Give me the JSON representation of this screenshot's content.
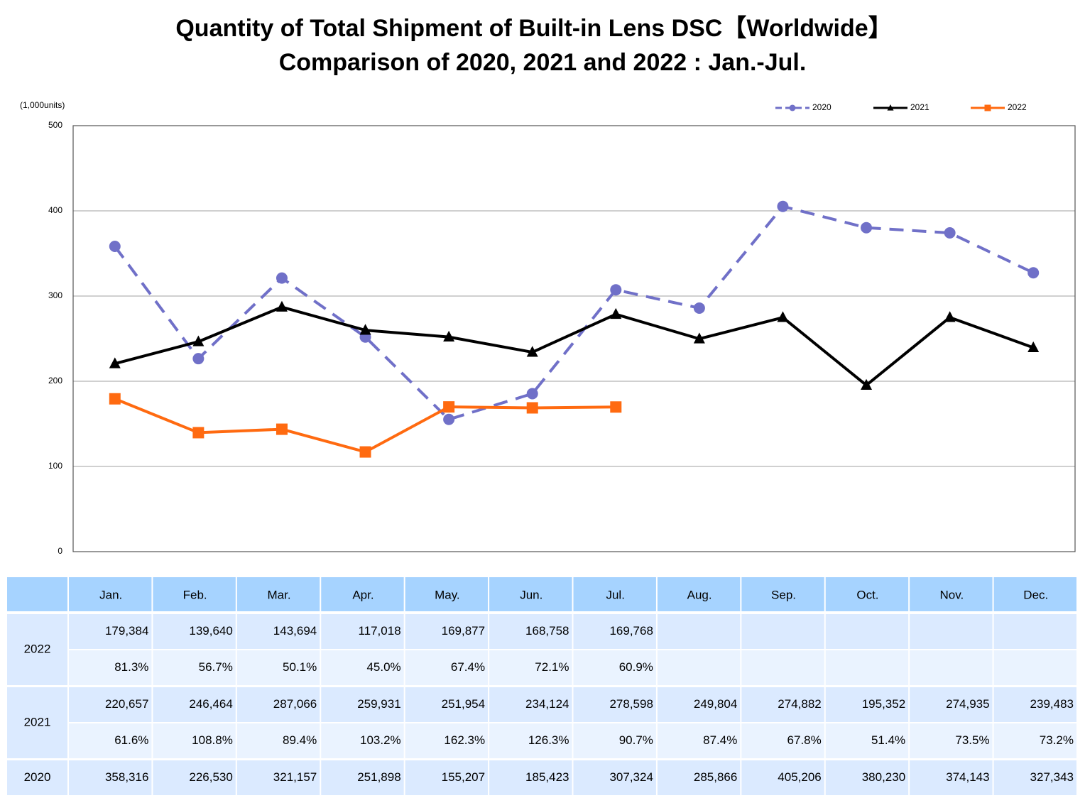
{
  "chart_data": {
    "type": "line",
    "title": [
      "Quantity of Total Shipment of Built-in Lens DSC【Worldwide】",
      "Comparison of 2020, 2021 and 2022 : Jan.-Jul."
    ],
    "ylabel": "(1,000units)",
    "categories": [
      "Jan.",
      "Feb.",
      "Mar.",
      "Apr.",
      "May.",
      "Jun.",
      "Jul.",
      "Aug.",
      "Sep.",
      "Oct.",
      "Nov.",
      "Dec."
    ],
    "series": [
      {
        "name": "2020",
        "color": "#7070c8",
        "dash": true,
        "marker": "circle",
        "values": [
          358.316,
          226.53,
          321.157,
          251.898,
          155.207,
          185.423,
          307.324,
          285.866,
          405.206,
          380.23,
          374.143,
          327.343
        ]
      },
      {
        "name": "2021",
        "color": "#000000",
        "dash": false,
        "marker": "triangle",
        "values": [
          220.657,
          246.464,
          287.066,
          259.931,
          251.954,
          234.124,
          278.598,
          249.804,
          274.882,
          195.352,
          274.935,
          239.483
        ]
      },
      {
        "name": "2022",
        "color": "#ff6a10",
        "dash": false,
        "marker": "square",
        "values": [
          179.384,
          139.64,
          143.694,
          117.018,
          169.877,
          168.758,
          169.768,
          null,
          null,
          null,
          null,
          null
        ]
      }
    ],
    "ylim": [
      0,
      500
    ],
    "yticks": [
      0,
      100,
      200,
      300,
      400,
      500
    ],
    "grid": true,
    "legend": "top-right"
  },
  "table": {
    "quantities": [
      [
        "358,316",
        "226,530",
        "321,157",
        "251,898",
        "155,207",
        "185,423",
        "307,324",
        "285,866",
        "405,206",
        "380,230",
        "374,143",
        "327,343"
      ],
      [
        "220,657",
        "246,464",
        "287,066",
        "259,931",
        "251,954",
        "234,124",
        "278,598",
        "249,804",
        "274,882",
        "195,352",
        "274,935",
        "239,483"
      ],
      [
        "179,384",
        "139,640",
        "143,694",
        "117,018",
        "169,877",
        "168,758",
        "169,768"
      ]
    ],
    "ratios": [
      null,
      [
        "61.6%",
        "108.8%",
        "89.4%",
        "103.2%",
        "162.3%",
        "126.3%",
        "90.7%",
        "87.4%",
        "67.8%",
        "51.4%",
        "73.5%",
        "73.2%"
      ],
      [
        "81.3%",
        "56.7%",
        "50.1%",
        "45.0%",
        "67.4%",
        "72.1%",
        "60.9%"
      ]
    ]
  }
}
